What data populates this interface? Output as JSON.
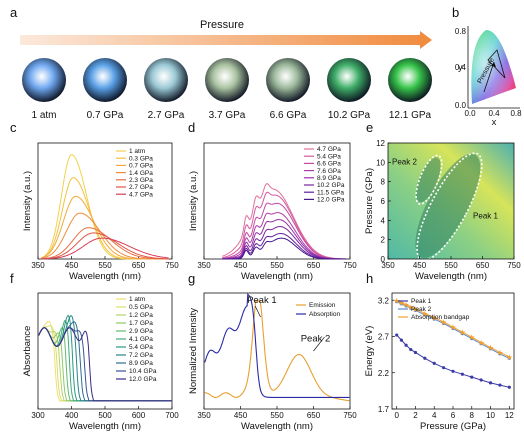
{
  "panel_letters": [
    "a",
    "b",
    "c",
    "d",
    "e",
    "f",
    "g",
    "h"
  ],
  "panel_a": {
    "arrow_label": "Pressure",
    "samples": [
      {
        "label": "1 atm",
        "color": "#6fa8f0"
      },
      {
        "label": "0.7 GPa",
        "color": "#5aa0e6"
      },
      {
        "label": "2.7 GPa",
        "color": "#9ac8d4"
      },
      {
        "label": "3.7 GPa",
        "color": "#a9c2a0"
      },
      {
        "label": "6.6 GPa",
        "color": "#9bb89a"
      },
      {
        "label": "10.2 GPa",
        "color": "#3fae68"
      },
      {
        "label": "12.1 GPa",
        "color": "#37c44a"
      }
    ]
  },
  "panel_b": {
    "xlabel": "x",
    "ylabel": "y",
    "ticks_x": [
      "0.0",
      "0.4",
      "0.8"
    ],
    "ticks_y": [
      "0.0",
      "0.4",
      "0.8"
    ],
    "annotation": "Pressure"
  },
  "chart_data": [
    {
      "id": "c",
      "type": "line",
      "xlabel": "Wavelength (nm)",
      "ylabel": "Intensity (a.u.)",
      "xlim": [
        350,
        750
      ],
      "xticks": [
        350,
        450,
        550,
        650,
        750
      ],
      "series": [
        {
          "name": "1 atm",
          "color": "#f2d24a",
          "peak": 450,
          "amp": 1.0,
          "width": 30
        },
        {
          "name": "0.3 GPa",
          "color": "#f5c040",
          "peak": 455,
          "amp": 0.78,
          "width": 32
        },
        {
          "name": "0.7 GPa",
          "color": "#f3a93a",
          "peak": 462,
          "amp": 0.6,
          "width": 36
        },
        {
          "name": "1.4 GPa",
          "color": "#ef8e3c",
          "peak": 475,
          "amp": 0.44,
          "width": 40
        },
        {
          "name": "2.3 GPa",
          "color": "#e8703f",
          "peak": 500,
          "amp": 0.3,
          "width": 45
        },
        {
          "name": "2.7 GPa",
          "color": "#df5745",
          "peak": 515,
          "amp": 0.25,
          "width": 48
        },
        {
          "name": "4.7 GPa",
          "color": "#d63e58",
          "peak": 540,
          "amp": 0.2,
          "width": 55
        }
      ]
    },
    {
      "id": "d",
      "type": "line",
      "xlabel": "Wavelength (nm)",
      "ylabel": "Intensity (a.u.)",
      "xlim": [
        350,
        750
      ],
      "xticks": [
        350,
        450,
        550,
        650,
        750
      ],
      "series": [
        {
          "name": "4.7 GPa",
          "color": "#e0709a",
          "peak": 540,
          "amp": 0.6,
          "width": 55
        },
        {
          "name": "5.4 GPa",
          "color": "#d45aa0",
          "peak": 545,
          "amp": 0.55,
          "width": 52
        },
        {
          "name": "6.6 GPa",
          "color": "#c44aa4",
          "peak": 550,
          "amp": 0.48,
          "width": 50
        },
        {
          "name": "7.6 GPa",
          "color": "#b03ca8",
          "peak": 552,
          "amp": 0.4,
          "width": 48
        },
        {
          "name": "8.9 GPa",
          "color": "#962fa8",
          "peak": 555,
          "amp": 0.34,
          "width": 46
        },
        {
          "name": "10.2 GPa",
          "color": "#7c26a4",
          "peak": 558,
          "amp": 0.28,
          "width": 44
        },
        {
          "name": "11.5 GPa",
          "color": "#60209c",
          "peak": 560,
          "amp": 0.22,
          "width": 42
        },
        {
          "name": "12.0 GPa",
          "color": "#441a90",
          "peak": 562,
          "amp": 0.18,
          "width": 40
        }
      ]
    },
    {
      "id": "e",
      "type": "heatmap",
      "xlabel": "Wavelength (nm)",
      "ylabel": "Pressure (GPa)",
      "xlim": [
        350,
        750
      ],
      "ylim": [
        0,
        12
      ],
      "xticks": [
        350,
        450,
        550,
        650,
        750
      ],
      "yticks": [
        0,
        2,
        4,
        6,
        8,
        10,
        12
      ],
      "annotations": [
        "Peak 2",
        "Peak 1"
      ]
    },
    {
      "id": "f",
      "type": "line",
      "xlabel": "Wavelength (nm)",
      "ylabel": "Absorbance",
      "xlim": [
        300,
        700
      ],
      "xticks": [
        300,
        400,
        500,
        600,
        700
      ],
      "series": [
        {
          "name": "1 atm",
          "color": "#f0e070",
          "edge": 352
        },
        {
          "name": "0.5 GPa",
          "color": "#d8de68",
          "edge": 358
        },
        {
          "name": "1.2 GPa",
          "color": "#b4d466",
          "edge": 366
        },
        {
          "name": "1.7 GPa",
          "color": "#8ec866",
          "edge": 374
        },
        {
          "name": "2.9 GPa",
          "color": "#62ba6e",
          "edge": 384
        },
        {
          "name": "4.1 GPa",
          "color": "#3eaa78",
          "edge": 394
        },
        {
          "name": "5.4 GPa",
          "color": "#2a9884",
          "edge": 404
        },
        {
          "name": "7.2 GPa",
          "color": "#2a848c",
          "edge": 416
        },
        {
          "name": "8.9 GPa",
          "color": "#2e6e92",
          "edge": 428
        },
        {
          "name": "10.4 GPa",
          "color": "#3a5294",
          "edge": 440
        },
        {
          "name": "12.0 GPa",
          "color": "#3d2a86",
          "edge": 454
        }
      ]
    },
    {
      "id": "g",
      "type": "line",
      "xlabel": "Wavelength (nm)",
      "ylabel": "Normalized Intensity",
      "xlim": [
        350,
        750
      ],
      "xticks": [
        350,
        450,
        550,
        650,
        750
      ],
      "annotations": [
        "Peak 1",
        "Peak 2"
      ],
      "series": [
        {
          "name": "Emission",
          "color": "#e8a030"
        },
        {
          "name": "Absorption",
          "color": "#2a2aa8"
        }
      ]
    },
    {
      "id": "h",
      "type": "line",
      "xlabel": "Pressure (GPa)",
      "ylabel": "Energy (eV)",
      "xlim": [
        -0.5,
        12.5
      ],
      "ylim": [
        1.7,
        3.3
      ],
      "xticks": [
        0,
        2,
        4,
        6,
        8,
        10,
        12
      ],
      "yticks": [
        1.7,
        2.2,
        2.7,
        3.2
      ],
      "series": [
        {
          "name": "Peak 1",
          "color": "#3a3aa8",
          "marker": "circle",
          "x": [
            0,
            0.5,
            1,
            1.5,
            2,
            3,
            4,
            5,
            6,
            7,
            8,
            9,
            10,
            11,
            12
          ],
          "y": [
            2.72,
            2.65,
            2.58,
            2.52,
            2.48,
            2.4,
            2.33,
            2.27,
            2.22,
            2.18,
            2.14,
            2.1,
            2.06,
            2.03,
            2.0
          ]
        },
        {
          "name": "Peak 2",
          "color": "#5a8ad0",
          "marker": "circle",
          "x": [
            0,
            0.5,
            1,
            1.5,
            2,
            3,
            4,
            5,
            6,
            7,
            8,
            9,
            10,
            11,
            12
          ],
          "y": [
            3.18,
            3.15,
            3.12,
            3.09,
            3.06,
            3.0,
            2.94,
            2.88,
            2.81,
            2.74,
            2.67,
            2.6,
            2.53,
            2.46,
            2.4
          ]
        },
        {
          "name": "Absorption bandgap",
          "color": "#f0a030",
          "marker": "star",
          "x": [
            0,
            0.5,
            1,
            1.5,
            2,
            3,
            4,
            5,
            6,
            7,
            8,
            9,
            10,
            11,
            12
          ],
          "y": [
            3.2,
            3.17,
            3.14,
            3.11,
            3.08,
            3.02,
            2.96,
            2.9,
            2.83,
            2.76,
            2.69,
            2.62,
            2.55,
            2.48,
            2.42
          ]
        }
      ]
    }
  ]
}
